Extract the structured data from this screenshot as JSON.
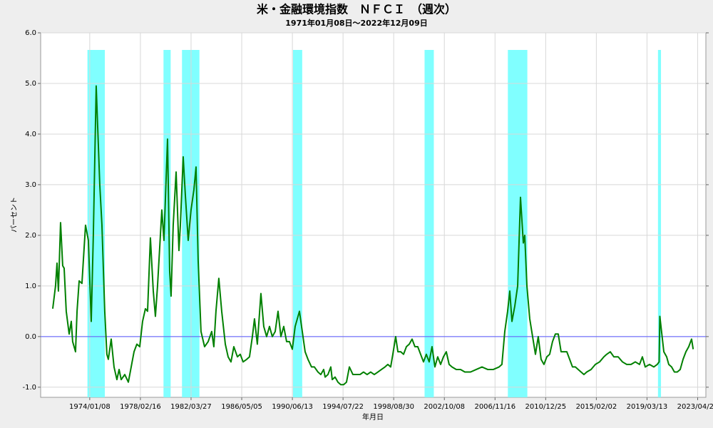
{
  "chart_data": {
    "type": "line",
    "title": "米・金融環境指数　ＮＦＣＩ　（週次）",
    "subtitle": "1971年01月08日～2022年12月09日",
    "x_label": "年月日",
    "y_label": "パーセント",
    "color": "#008000",
    "grid": true,
    "reference_line": {
      "value": 0,
      "color": "#5555ff"
    },
    "shade_color": "#80ffff",
    "shaded_periods": [
      {
        "start": "1973/11/01",
        "end": "1975/03/31"
      },
      {
        "start": "1980/01/01",
        "end": "1980/07/31"
      },
      {
        "start": "1981/07/01",
        "end": "1982/11/30"
      },
      {
        "start": "1990/07/01",
        "end": "1991/03/31"
      },
      {
        "start": "2001/03/01",
        "end": "2001/11/30"
      },
      {
        "start": "2007/12/01",
        "end": "2009/06/30"
      },
      {
        "start": "2020/02/01",
        "end": "2020/04/30"
      }
    ],
    "xlim": [
      "1970/01/15",
      "2023/12/20"
    ],
    "xticks": [
      "1974/01/08",
      "1978/02/16",
      "1982/03/27",
      "1986/05/05",
      "1990/06/13",
      "1994/07/22",
      "1998/08/30",
      "2002/10/08",
      "2006/11/16",
      "2010/12/25",
      "2015/02/02",
      "2019/03/13",
      "2023/04/21"
    ],
    "ylim": [
      -1.2,
      6.0
    ],
    "yticks": [
      {
        "value": -1,
        "label": "-1.0"
      },
      {
        "value": 0,
        "label": "0.0"
      },
      {
        "value": 1,
        "label": "1.0"
      },
      {
        "value": 2,
        "label": "2.0"
      },
      {
        "value": 3,
        "label": "3.0"
      },
      {
        "value": 4,
        "label": "4.0"
      },
      {
        "value": 5,
        "label": "5.0"
      },
      {
        "value": 6,
        "label": "6.0"
      }
    ],
    "x": [
      "1971/01/08",
      "1971/04/01",
      "1971/05/15",
      "1971/06/25",
      "1971/08/28",
      "1971/10/30",
      "1971/12/12",
      "1972/02/12",
      "1972/05/08",
      "1972/07/10",
      "1972/08/20",
      "1972/11/13",
      "1972/12/28",
      "1973/02/28",
      "1973/05/22",
      "1973/09/05",
      "1973/11/28",
      "1974/02/21",
      "1974/04/24",
      "1974/07/18",
      "1974/11/01",
      "1975/01/04",
      "1975/03/28",
      "1975/05/30",
      "1975/07/12",
      "1975/10/05",
      "1975/12/28",
      "1976/03/22",
      "1976/05/26",
      "1976/07/27",
      "1976/11/10",
      "1977/02/24",
      "1977/05/19",
      "1977/08/11",
      "1977/11/03",
      "1978/01/27",
      "1978/04/21",
      "1978/07/14",
      "1978/09/16",
      "1978/12/09",
      "1979/03/04",
      "1979/05/06",
      "1979/07/08",
      "1979/11/12",
      "1980/01/14",
      "1980/04/29",
      "1980/07/01",
      "1980/08/12",
      "1980/10/14",
      "1981/01/08",
      "1981/04/02",
      "1981/05/14",
      "1981/08/06",
      "1981/10/08",
      "1982/01/01",
      "1982/03/26",
      "1982/06/19",
      "1982/08/21",
      "1982/10/23",
      "1983/01/15",
      "1983/05/01",
      "1983/08/15",
      "1983/11/28",
      "1984/01/30",
      "1984/04/02",
      "1984/06/26",
      "1984/09/19",
      "1985/01/04",
      "1985/03/28",
      "1985/06/21",
      "1985/09/13",
      "1985/12/28",
      "1986/03/22",
      "1986/06/15",
      "1986/09/28",
      "1986/12/21",
      "1987/03/16",
      "1987/05/18",
      "1987/08/10",
      "1987/11/24",
      "1988/02/16",
      "1988/05/11",
      "1988/08/04",
      "1988/10/27",
      "1989/01/20",
      "1989/04/14",
      "1989/07/08",
      "1989/09/30",
      "1989/12/24",
      "1990/03/18",
      "1990/06/11",
      "1990/09/03",
      "1991/01/08",
      "1991/04/02",
      "1991/06/25",
      "1991/09/18",
      "1992/01/01",
      "1992/03/25",
      "1992/07/09",
      "1992/10/01",
      "1992/12/25",
      "1993/02/06",
      "1993/05/01",
      "1993/07/24",
      "1993/09/05",
      "1993/11/28",
      "1994/02/21",
      "1994/05/16",
      "1994/08/08",
      "1994/11/01",
      "1995/01/25",
      "1995/05/10",
      "1995/08/23",
      "1995/12/06",
      "1996/03/20",
      "1996/07/04",
      "1996/10/17",
      "1997/02/01",
      "1997/05/18",
      "1997/09/01",
      "1997/12/15",
      "1998/03/09",
      "1998/06/01",
      "1998/08/04",
      "1998/10/27",
      "1999/01/01",
      "1999/03/25",
      "1999/06/18",
      "1999/09/10",
      "1999/12/03",
      "2000/02/25",
      "2000/05/19",
      "2000/08/11",
      "2000/11/04",
      "2001/01/28",
      "2001/04/22",
      "2001/07/15",
      "2001/10/08",
      "2002/01/01",
      "2002/03/25",
      "2002/06/19",
      "2002/09/11",
      "2002/12/04",
      "2003/02/26",
      "2003/05/21",
      "2003/09/26",
      "2004/01/30",
      "2004/06/06",
      "2004/11/21",
      "2005/05/10",
      "2005/10/26",
      "2006/04/12",
      "2006/09/27",
      "2007/03/16",
      "2007/06/08",
      "2007/09/01",
      "2007/11/24",
      "2008/01/27",
      "2008/03/31",
      "2008/06/23",
      "2008/09/16",
      "2008/12/09",
      "2009/03/03",
      "2009/04/14",
      "2009/06/17",
      "2009/09/09",
      "2009/12/02",
      "2010/02/25",
      "2010/05/19",
      "2010/08/11",
      "2010/11/04",
      "2011/01/28",
      "2011/04/22",
      "2011/07/15",
      "2011/10/08",
      "2012/01/01",
      "2012/03/25",
      "2012/06/19",
      "2012/09/11",
      "2012/12/04",
      "2013/02/26",
      "2013/05/21",
      "2013/08/14",
      "2013/11/06",
      "2014/01/30",
      "2014/04/24",
      "2014/08/29",
      "2015/01/04",
      "2015/05/10",
      "2015/09/13",
      "2015/12/06",
      "2016/03/20",
      "2016/07/04",
      "2016/11/09",
      "2017/03/16",
      "2017/07/20",
      "2017/11/24",
      "2018/03/31",
      "2018/08/04",
      "2018/10/27",
      "2019/01/20",
      "2019/05/26",
      "2019/09/30",
      "2020/01/10",
      "2020/03/06",
      "2020/03/27",
      "2020/07/23",
      "2020/10/15",
      "2020/12/16",
      "2021/03/10",
      "2021/06/02",
      "2021/08/25",
      "2021/11/20",
      "2022/02/12",
      "2022/05/08",
      "2022/07/31",
      "2022/10/23",
      "2022/12/09"
    ],
    "values": [
      0.55,
      1.0,
      1.45,
      0.9,
      2.25,
      1.4,
      1.35,
      0.5,
      0.05,
      0.3,
      -0.1,
      -0.3,
      0.5,
      1.1,
      1.05,
      2.2,
      1.9,
      0.3,
      2.0,
      4.95,
      3.0,
      2.2,
      0.5,
      -0.35,
      -0.45,
      -0.05,
      -0.6,
      -0.85,
      -0.65,
      -0.85,
      -0.75,
      -0.9,
      -0.6,
      -0.3,
      -0.15,
      -0.2,
      0.3,
      0.55,
      0.5,
      1.95,
      0.9,
      0.4,
      1.0,
      2.5,
      1.9,
      3.9,
      1.3,
      0.8,
      2.2,
      3.25,
      1.7,
      2.2,
      3.55,
      2.8,
      1.9,
      2.5,
      2.9,
      3.35,
      1.5,
      0.1,
      -0.2,
      -0.1,
      0.1,
      -0.2,
      0.5,
      1.15,
      0.5,
      -0.15,
      -0.4,
      -0.5,
      -0.2,
      -0.4,
      -0.35,
      -0.5,
      -0.45,
      -0.4,
      0.0,
      0.35,
      -0.15,
      0.85,
      0.2,
      0.0,
      0.2,
      0.0,
      0.1,
      0.5,
      0.0,
      0.2,
      -0.1,
      -0.1,
      -0.25,
      0.2,
      0.5,
      0.1,
      -0.3,
      -0.45,
      -0.6,
      -0.6,
      -0.7,
      -0.75,
      -0.65,
      -0.8,
      -0.75,
      -0.6,
      -0.85,
      -0.8,
      -0.9,
      -0.95,
      -0.95,
      -0.9,
      -0.6,
      -0.75,
      -0.75,
      -0.75,
      -0.7,
      -0.75,
      -0.7,
      -0.75,
      -0.7,
      -0.65,
      -0.6,
      -0.55,
      -0.6,
      -0.35,
      0.0,
      -0.3,
      -0.3,
      -0.35,
      -0.2,
      -0.15,
      -0.05,
      -0.2,
      -0.2,
      -0.35,
      -0.5,
      -0.35,
      -0.5,
      -0.2,
      -0.6,
      -0.4,
      -0.55,
      -0.4,
      -0.3,
      -0.55,
      -0.6,
      -0.65,
      -0.65,
      -0.7,
      -0.7,
      -0.65,
      -0.6,
      -0.65,
      -0.65,
      -0.6,
      -0.55,
      0.1,
      0.5,
      0.9,
      0.3,
      0.6,
      1.0,
      2.75,
      1.85,
      2.0,
      1.0,
      0.35,
      0.0,
      -0.35,
      0.0,
      -0.45,
      -0.55,
      -0.4,
      -0.35,
      -0.1,
      0.05,
      0.05,
      -0.3,
      -0.3,
      -0.3,
      -0.45,
      -0.6,
      -0.6,
      -0.65,
      -0.7,
      -0.75,
      -0.7,
      -0.65,
      -0.55,
      -0.5,
      -0.4,
      -0.35,
      -0.3,
      -0.4,
      -0.4,
      -0.5,
      -0.55,
      -0.55,
      -0.5,
      -0.55,
      -0.4,
      -0.6,
      -0.55,
      -0.6,
      -0.55,
      -0.5,
      0.4,
      -0.3,
      -0.4,
      -0.55,
      -0.6,
      -0.7,
      -0.7,
      -0.65,
      -0.45,
      -0.3,
      -0.2,
      -0.05,
      -0.25
    ]
  }
}
